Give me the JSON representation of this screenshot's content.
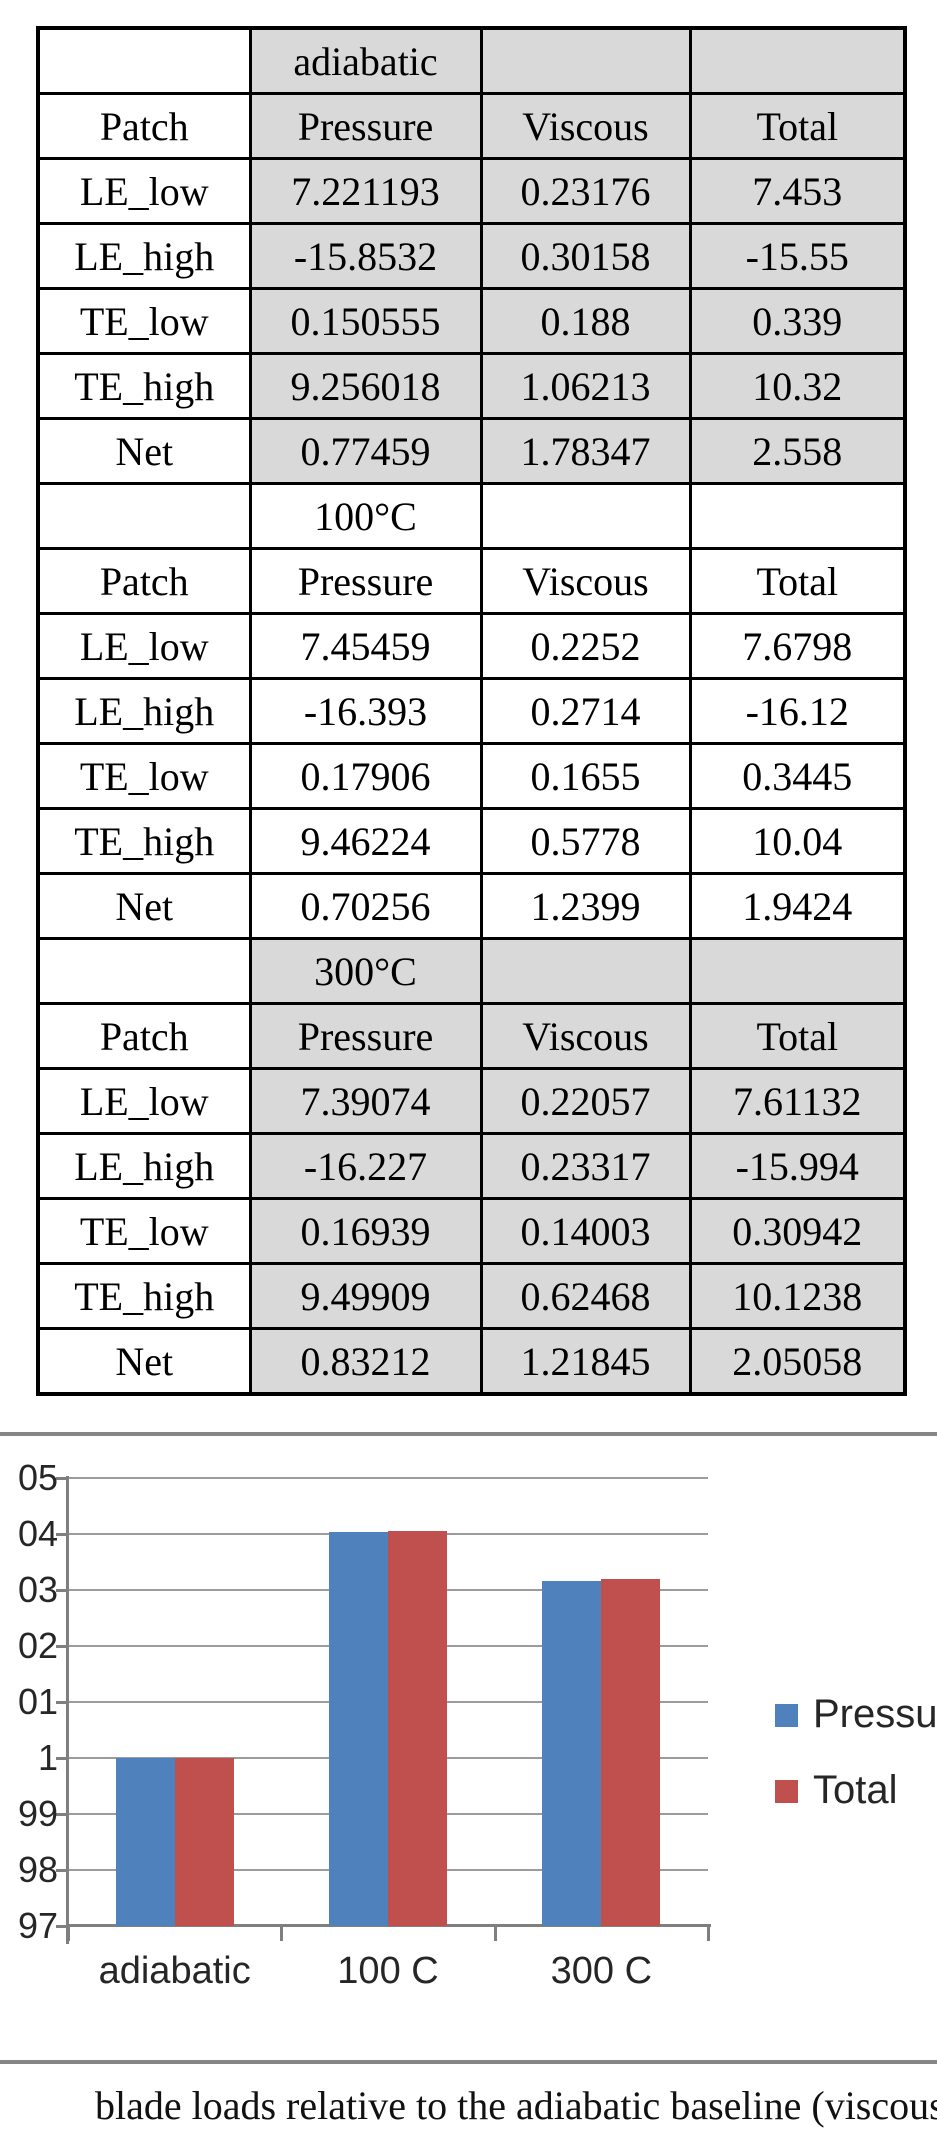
{
  "table": {
    "columns": [
      "Patch",
      "Pressure",
      "Viscous",
      "Total"
    ],
    "sections": [
      {
        "label": "adiabatic",
        "shaded": true,
        "rows": [
          [
            "LE_low",
            "7.221193",
            "0.23176",
            "7.453"
          ],
          [
            "LE_high",
            "-15.8532",
            "0.30158",
            "-15.55"
          ],
          [
            "TE_low",
            "0.150555",
            "0.188",
            "0.339"
          ],
          [
            "TE_high",
            "9.256018",
            "1.06213",
            "10.32"
          ],
          [
            "Net",
            "0.77459",
            "1.78347",
            "2.558"
          ]
        ]
      },
      {
        "label": "100°C",
        "shaded": false,
        "rows": [
          [
            "LE_low",
            "7.45459",
            "0.2252",
            "7.6798"
          ],
          [
            "LE_high",
            "-16.393",
            "0.2714",
            "-16.12"
          ],
          [
            "TE_low",
            "0.17906",
            "0.1655",
            "0.3445"
          ],
          [
            "TE_high",
            "9.46224",
            "0.5778",
            "10.04"
          ],
          [
            "Net",
            "0.70256",
            "1.2399",
            "1.9424"
          ]
        ]
      },
      {
        "label": "300°C",
        "shaded": true,
        "rows": [
          [
            "LE_low",
            "7.39074",
            "0.22057",
            "7.61132"
          ],
          [
            "LE_high",
            "-16.227",
            "0.23317",
            "-15.994"
          ],
          [
            "TE_low",
            "0.16939",
            "0.14003",
            "0.30942"
          ],
          [
            "TE_high",
            "9.49909",
            "0.62468",
            "10.1238"
          ],
          [
            "Net",
            "0.83212",
            "1.21845",
            "2.05058"
          ]
        ]
      }
    ]
  },
  "chart_data": {
    "type": "bar",
    "categories": [
      "adiabatic",
      "100 C",
      "300 C"
    ],
    "series": [
      {
        "name": "Pressure",
        "color": "#4F81BD",
        "values": [
          1.0,
          1.0403,
          1.0316
        ]
      },
      {
        "name": "Total",
        "color": "#C0504D",
        "values": [
          1.0,
          1.0406,
          1.032
        ]
      }
    ],
    "title": "",
    "xlabel": "",
    "ylabel": "",
    "ylim": [
      0.97,
      1.05
    ],
    "ytick_step": 0.01,
    "ytick_labels_visible": [
      "05",
      "04",
      "03",
      "02",
      "01",
      "1",
      "99",
      "98",
      "97"
    ],
    "grid": true,
    "legend_position": "right"
  },
  "colors": {
    "table_shade": "#D9D9D9",
    "bar_blue": "#4F81BD",
    "bar_red": "#C0504D",
    "gridline": "#9C9C9C",
    "axis": "#7F7F7F",
    "divider": "#868686"
  },
  "caption_fragment": "blade loads relative to the adiabatic baseline (viscous lift"
}
